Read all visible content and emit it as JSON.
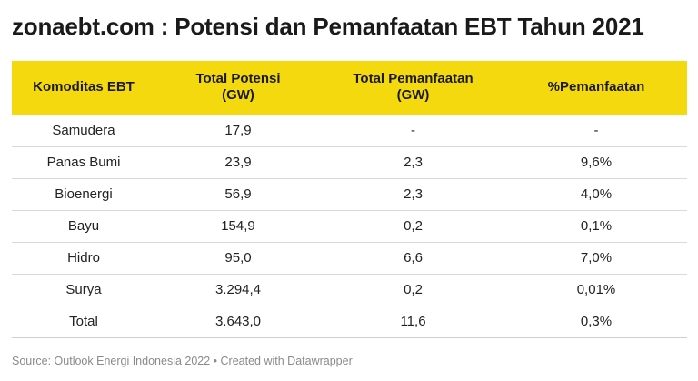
{
  "title": "zonaebt.com : Potensi dan Pemanfaatan EBT Tahun 2021",
  "table": {
    "headers": [
      {
        "line1": "Komoditas EBT",
        "line2": ""
      },
      {
        "line1": "Total Potensi",
        "line2": "(GW)"
      },
      {
        "line1": "Total Pemanfaatan",
        "line2": "(GW)"
      },
      {
        "line1": "%Pemanfaatan",
        "line2": ""
      }
    ],
    "rows": [
      [
        "Samudera",
        "17,9",
        "-",
        "-"
      ],
      [
        "Panas Bumi",
        "23,9",
        "2,3",
        "9,6%"
      ],
      [
        "Bioenergi",
        "56,9",
        "2,3",
        "4,0%"
      ],
      [
        "Bayu",
        "154,9",
        "0,2",
        "0,1%"
      ],
      [
        "Hidro",
        "95,0",
        "6,6",
        "7,0%"
      ],
      [
        "Surya",
        "3.294,4",
        "0,2",
        "0,01%"
      ],
      [
        "Total",
        "3.643,0",
        "11,6",
        "0,3%"
      ]
    ]
  },
  "footer": {
    "source": "Source: Outlook Energi Indonesia 2022",
    "separator": " • ",
    "credit": "Created with Datawrapper"
  },
  "colors": {
    "header_background": "#f5d90f",
    "footer_text": "#8a8a8a"
  }
}
